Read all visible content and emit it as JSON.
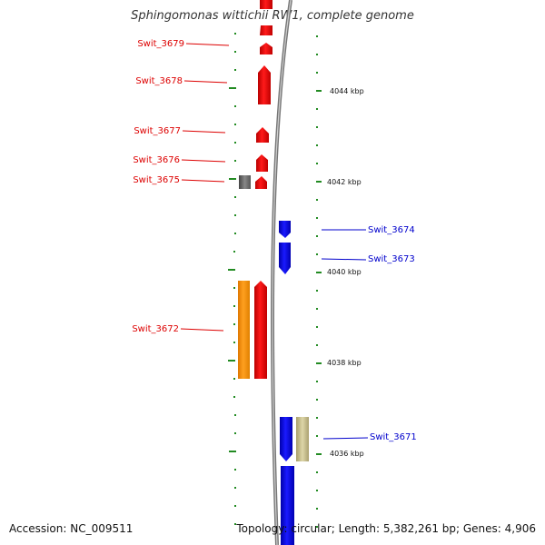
{
  "title": "Sphingomonas wittichii RW1, complete genome",
  "accession": "Accession: NC_009511",
  "summary": "Topology: circular; Length: 5,382,261 bp; Genes: 4,906",
  "colors": {
    "forward_gene": "#ee0000",
    "reverse_gene": "#0000ee",
    "backbone": "#888888",
    "tick": "#228b22"
  },
  "scale_labels": [
    "4044 kbp",
    "4042 kbp",
    "4040 kbp",
    "4038 kbp",
    "4036 kbp"
  ],
  "forward_labels": [
    "Swit_3679",
    "Swit_3678",
    "Swit_3677",
    "Swit_3676",
    "Swit_3675",
    "Swit_3672"
  ],
  "reverse_labels": [
    "Swit_3674",
    "Swit_3673",
    "Swit_3671"
  ]
}
